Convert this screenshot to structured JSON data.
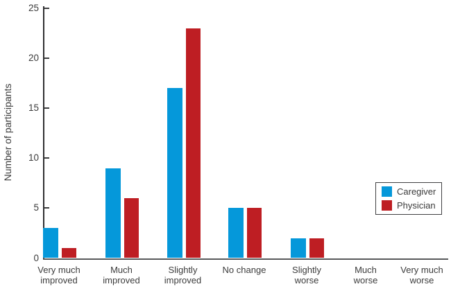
{
  "chart_data": {
    "type": "bar",
    "title": "",
    "xlabel": "",
    "ylabel": "Number of participants",
    "ylim": [
      0,
      25
    ],
    "yticks": [
      0,
      5,
      10,
      15,
      20,
      25
    ],
    "grid": false,
    "legend_position": "middle-right",
    "categories": [
      "Very much\nimproved",
      "Much\nimproved",
      "Slightly\nimproved",
      "No change",
      "Slightly\nworse",
      "Much\nworse",
      "Very much\nworse"
    ],
    "series": [
      {
        "name": "Caregiver",
        "color": "#0598DA",
        "values": [
          3,
          9,
          17,
          5,
          2,
          0,
          0
        ]
      },
      {
        "name": "Physician",
        "color": "#BE1E23",
        "values": [
          1,
          6,
          23,
          5,
          2,
          0,
          0
        ]
      }
    ]
  },
  "colors": {
    "caregiver_blue": "#0598DA",
    "physician_red": "#BE1E23",
    "y_axis_line": "#2e2e30",
    "x_axis_line": "#57585a",
    "text": "#3b3b3b",
    "legend_border": "#3f3f41",
    "background": "#ffffff"
  }
}
